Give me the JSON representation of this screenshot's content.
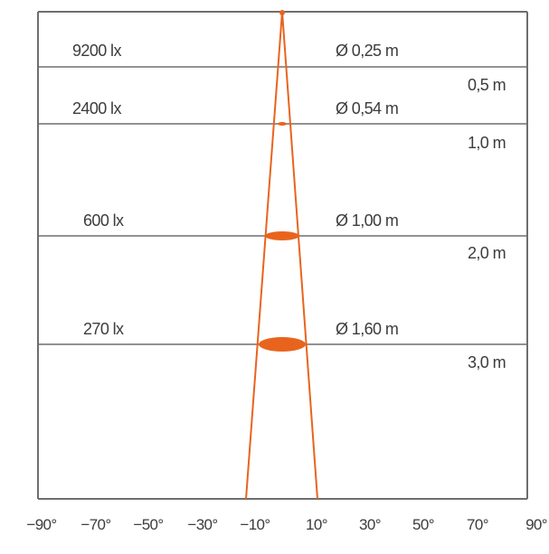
{
  "levels": [
    {
      "distance": "",
      "illuminance": "9200 lx",
      "diameter": "Ø 0,25 m"
    },
    {
      "distance": "0,5 m",
      "illuminance": "2400 lx",
      "diameter": "Ø 0,54 m"
    },
    {
      "distance": "1,0 m",
      "illuminance": "600 lx",
      "diameter": "Ø 1,00 m"
    },
    {
      "distance": "2,0 m",
      "illuminance": "270 lx",
      "diameter": "Ø 1,60 m"
    },
    {
      "distance": "3,0 m",
      "illuminance": "",
      "diameter": ""
    }
  ],
  "angle_axis": [
    "−90°",
    "−70°",
    "−50°",
    "−30°",
    "−10°",
    "10°",
    "30°",
    "50°",
    "70°",
    "90°"
  ],
  "colors": {
    "beam": "#e8641e",
    "lines": "#6e6e6e",
    "text": "#3c3c3c"
  }
}
